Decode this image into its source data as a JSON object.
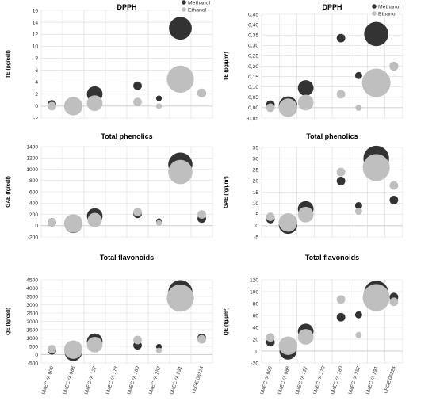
{
  "figure": {
    "colors": {
      "methanol": "#333333",
      "ethanol": "#bfbfbf",
      "grid": "#d9d9d9"
    },
    "categories": [
      "LMECYA 009",
      "LMECYA 088",
      "LMECYA 127",
      "LMECYA 173",
      "LMECYA 180",
      "LMECYA 257",
      "LMECYA 291",
      "LEGE 06224"
    ]
  },
  "chart_data": [
    {
      "type": "scatter",
      "title": "DPPH",
      "ylabel": "TE (pg/cell)",
      "ylim": [
        -2,
        16
      ],
      "yticks": [
        "-2",
        "0",
        "2",
        "4",
        "6",
        "8",
        "10",
        "12",
        "14",
        "16"
      ],
      "legend": {
        "position": "top-right",
        "entries": [
          "Methanol",
          "Ethanol"
        ]
      },
      "series": [
        {
          "name": "Methanol",
          "color": "#333333",
          "points": [
            {
              "category": "LMECYA 009",
              "y": 0.3,
              "size": 0.3
            },
            {
              "category": "LMECYA 088",
              "y": 0.0,
              "size": 0.6
            },
            {
              "category": "LMECYA 127",
              "y": 2.0,
              "size": 0.55
            },
            {
              "category": "LMECYA 180",
              "y": 3.4,
              "size": 0.3
            },
            {
              "category": "LMECYA 257",
              "y": 1.3,
              "size": 0.2
            },
            {
              "category": "LMECYA 291",
              "y": 13.0,
              "size": 0.8
            },
            {
              "category": "LEGE 06224",
              "y": 2.2,
              "size": 0.3
            }
          ]
        },
        {
          "name": "Ethanol",
          "color": "#bfbfbf",
          "points": [
            {
              "category": "LMECYA 009",
              "y": 0.0,
              "size": 0.3
            },
            {
              "category": "LMECYA 088",
              "y": 0.0,
              "size": 0.65
            },
            {
              "category": "LMECYA 127",
              "y": 0.5,
              "size": 0.55
            },
            {
              "category": "LMECYA 180",
              "y": 0.7,
              "size": 0.3
            },
            {
              "category": "LMECYA 257",
              "y": 0.0,
              "size": 0.2
            },
            {
              "category": "LMECYA 291",
              "y": 4.5,
              "size": 0.95
            },
            {
              "category": "LEGE 06224",
              "y": 2.2,
              "size": 0.3
            }
          ]
        }
      ]
    },
    {
      "type": "scatter",
      "title": "DPPH",
      "ylabel": "TE (pg/µm³)",
      "ylim": [
        -0.05,
        0.45
      ],
      "yticks": [
        "-0,05",
        "0,00",
        "0,05",
        "0,10",
        "0,15",
        "0,20",
        "0,25",
        "0,30",
        "0,35",
        "0,40",
        "0,45"
      ],
      "legend": {
        "position": "top-right",
        "entries": [
          "Methanol",
          "Ethanol"
        ]
      },
      "series": [
        {
          "name": "Methanol",
          "color": "#333333",
          "points": [
            {
              "category": "LMECYA 009",
              "y": 0.015,
              "size": 0.3
            },
            {
              "category": "LMECYA 088",
              "y": 0.01,
              "size": 0.65
            },
            {
              "category": "LMECYA 127",
              "y": 0.095,
              "size": 0.55
            },
            {
              "category": "LMECYA 180",
              "y": 0.335,
              "size": 0.3
            },
            {
              "category": "LMECYA 257",
              "y": 0.155,
              "size": 0.25
            },
            {
              "category": "LMECYA 291",
              "y": 0.355,
              "size": 0.85
            },
            {
              "category": "LEGE 06224",
              "y": 0.2,
              "size": 0.3
            }
          ]
        },
        {
          "name": "Ethanol",
          "color": "#bfbfbf",
          "points": [
            {
              "category": "LMECYA 009",
              "y": 0.0,
              "size": 0.3
            },
            {
              "category": "LMECYA 088",
              "y": 0.0,
              "size": 0.65
            },
            {
              "category": "LMECYA 127",
              "y": 0.025,
              "size": 0.55
            },
            {
              "category": "LMECYA 180",
              "y": 0.065,
              "size": 0.3
            },
            {
              "category": "LMECYA 257",
              "y": 0.0,
              "size": 0.22
            },
            {
              "category": "LMECYA 291",
              "y": 0.12,
              "size": 1.0
            },
            {
              "category": "LEGE 06224",
              "y": 0.2,
              "size": 0.3
            }
          ]
        }
      ]
    },
    {
      "type": "scatter",
      "title": "Total phenolics",
      "ylabel": "GAE (fg/cell)",
      "ylim": [
        -200,
        1400
      ],
      "yticks": [
        "-200",
        "0",
        "200",
        "400",
        "600",
        "800",
        "1000",
        "1200",
        "1400"
      ],
      "series": [
        {
          "name": "Methanol",
          "color": "#333333",
          "points": [
            {
              "category": "LMECYA 009",
              "y": 60,
              "size": 0.3
            },
            {
              "category": "LMECYA 088",
              "y": 20,
              "size": 0.6
            },
            {
              "category": "LMECYA 127",
              "y": 170,
              "size": 0.55
            },
            {
              "category": "LMECYA 180",
              "y": 210,
              "size": 0.3
            },
            {
              "category": "LMECYA 257",
              "y": 80,
              "size": 0.2
            },
            {
              "category": "LMECYA 291",
              "y": 1080,
              "size": 0.85
            },
            {
              "category": "LEGE 06224",
              "y": 125,
              "size": 0.3
            }
          ]
        },
        {
          "name": "Ethanol",
          "color": "#bfbfbf",
          "points": [
            {
              "category": "LMECYA 009",
              "y": 60,
              "size": 0.3
            },
            {
              "category": "LMECYA 088",
              "y": 40,
              "size": 0.65
            },
            {
              "category": "LMECYA 127",
              "y": 100,
              "size": 0.5
            },
            {
              "category": "LMECYA 180",
              "y": 240,
              "size": 0.3
            },
            {
              "category": "LMECYA 257",
              "y": 50,
              "size": 0.2
            },
            {
              "category": "LMECYA 291",
              "y": 950,
              "size": 0.85
            },
            {
              "category": "LEGE 06224",
              "y": 200,
              "size": 0.3
            }
          ]
        }
      ]
    },
    {
      "type": "scatter",
      "title": "Total phenolics",
      "ylabel": "GAE (fg/µm³)",
      "ylim": [
        -5,
        35
      ],
      "yticks": [
        "-5",
        "0",
        "5",
        "10",
        "15",
        "20",
        "25",
        "30",
        "35"
      ],
      "series": [
        {
          "name": "Methanol",
          "color": "#333333",
          "points": [
            {
              "category": "LMECYA 009",
              "y": 3,
              "size": 0.3
            },
            {
              "category": "LMECYA 088",
              "y": 0.5,
              "size": 0.65
            },
            {
              "category": "LMECYA 127",
              "y": 7.5,
              "size": 0.55
            },
            {
              "category": "LMECYA 180",
              "y": 20,
              "size": 0.3
            },
            {
              "category": "LMECYA 257",
              "y": 9,
              "size": 0.25
            },
            {
              "category": "LMECYA 291",
              "y": 30,
              "size": 0.9
            },
            {
              "category": "LEGE 06224",
              "y": 11.5,
              "size": 0.3
            }
          ]
        },
        {
          "name": "Ethanol",
          "color": "#bfbfbf",
          "points": [
            {
              "category": "LMECYA 009",
              "y": 4,
              "size": 0.3
            },
            {
              "category": "LMECYA 088",
              "y": 1.5,
              "size": 0.65
            },
            {
              "category": "LMECYA 127",
              "y": 5,
              "size": 0.55
            },
            {
              "category": "LMECYA 180",
              "y": 24,
              "size": 0.3
            },
            {
              "category": "LMECYA 257",
              "y": 6.5,
              "size": 0.25
            },
            {
              "category": "LMECYA 291",
              "y": 26,
              "size": 0.95
            },
            {
              "category": "LEGE 06224",
              "y": 18,
              "size": 0.3
            }
          ]
        }
      ]
    },
    {
      "type": "scatter",
      "title": "Total flavonoids",
      "ylabel": "QE (fg/cell)",
      "ylim": [
        -500,
        4500
      ],
      "yticks": [
        "-500",
        "0",
        "500",
        "1000",
        "1500",
        "2000",
        "2500",
        "3000",
        "3500",
        "4000",
        "4500"
      ],
      "series": [
        {
          "name": "Methanol",
          "color": "#333333",
          "points": [
            {
              "category": "LMECYA 009",
              "y": 260,
              "size": 0.3
            },
            {
              "category": "LMECYA 088",
              "y": 130,
              "size": 0.6
            },
            {
              "category": "LMECYA 127",
              "y": 800,
              "size": 0.55
            },
            {
              "category": "LMECYA 180",
              "y": 560,
              "size": 0.3
            },
            {
              "category": "LMECYA 257",
              "y": 480,
              "size": 0.2
            },
            {
              "category": "LMECYA 291",
              "y": 3750,
              "size": 0.85
            },
            {
              "category": "LEGE 06224",
              "y": 1000,
              "size": 0.3
            }
          ]
        },
        {
          "name": "Ethanol",
          "color": "#bfbfbf",
          "points": [
            {
              "category": "LMECYA 009",
              "y": 330,
              "size": 0.3
            },
            {
              "category": "LMECYA 088",
              "y": 300,
              "size": 0.65
            },
            {
              "category": "LMECYA 127",
              "y": 600,
              "size": 0.55
            },
            {
              "category": "LMECYA 180",
              "y": 880,
              "size": 0.3
            },
            {
              "category": "LMECYA 257",
              "y": 250,
              "size": 0.2
            },
            {
              "category": "LMECYA 291",
              "y": 3400,
              "size": 0.95
            },
            {
              "category": "LEGE 06224",
              "y": 920,
              "size": 0.3
            }
          ]
        }
      ]
    },
    {
      "type": "scatter",
      "title": "Total flavonoids",
      "ylabel": "QE (fg/µm³)",
      "ylim": [
        -20,
        120
      ],
      "yticks": [
        "-20",
        "0",
        "20",
        "40",
        "60",
        "80",
        "100",
        "120"
      ],
      "series": [
        {
          "name": "Methanol",
          "color": "#333333",
          "points": [
            {
              "category": "LMECYA 009",
              "y": 15,
              "size": 0.3
            },
            {
              "category": "LMECYA 088",
              "y": 0,
              "size": 0.6
            },
            {
              "category": "LMECYA 127",
              "y": 33,
              "size": 0.55
            },
            {
              "category": "LMECYA 180",
              "y": 57,
              "size": 0.3
            },
            {
              "category": "LMECYA 257",
              "y": 61,
              "size": 0.25
            },
            {
              "category": "LMECYA 291",
              "y": 98,
              "size": 0.85
            },
            {
              "category": "LEGE 06224",
              "y": 91,
              "size": 0.3
            }
          ]
        },
        {
          "name": "Ethanol",
          "color": "#bfbfbf",
          "points": [
            {
              "category": "LMECYA 009",
              "y": 23,
              "size": 0.3
            },
            {
              "category": "LMECYA 088",
              "y": 9,
              "size": 0.65
            },
            {
              "category": "LMECYA 127",
              "y": 24,
              "size": 0.55
            },
            {
              "category": "LMECYA 180",
              "y": 87,
              "size": 0.3
            },
            {
              "category": "LMECYA 257",
              "y": 27,
              "size": 0.22
            },
            {
              "category": "LMECYA 291",
              "y": 90,
              "size": 0.95
            },
            {
              "category": "LEGE 06224",
              "y": 83,
              "size": 0.3
            }
          ]
        }
      ]
    }
  ]
}
